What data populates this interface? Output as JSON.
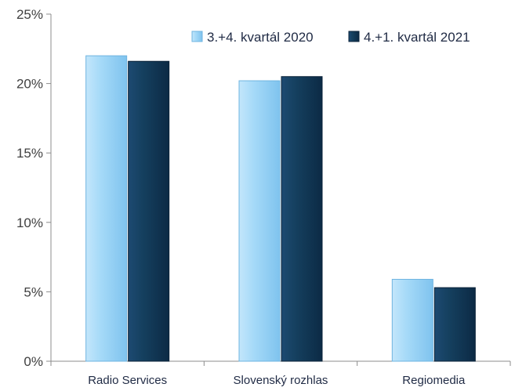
{
  "chart_data": {
    "type": "bar",
    "categories": [
      "Radio Services",
      "Slovenský rozhlas",
      "Regiomedia"
    ],
    "series": [
      {
        "name": "3.+4. kvartál 2020",
        "values": [
          22.0,
          20.2,
          5.9
        ],
        "color": "#9fd6f7"
      },
      {
        "name": "4.+1. kvartál 2021",
        "values": [
          21.6,
          20.5,
          5.3
        ],
        "color": "#12375a"
      }
    ],
    "yticks": [
      "0%",
      "5%",
      "10%",
      "15%",
      "20%",
      "25%"
    ],
    "ylim": [
      0,
      25
    ],
    "grid": false,
    "legend_position": "top-right"
  }
}
